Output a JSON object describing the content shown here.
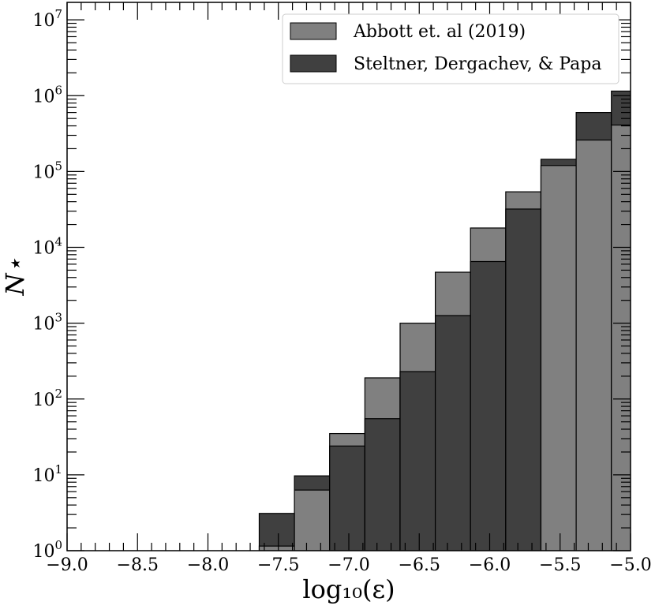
{
  "chart_data": {
    "type": "bar",
    "subtype": "histogram-overlaid",
    "xlabel": "log₁₀(ε)",
    "ylabel": "N⋆",
    "xlim": [
      -9.0,
      -5.0
    ],
    "ylim": [
      1,
      17000000
    ],
    "yscale": "log",
    "grid": false,
    "legend_position": "top-right",
    "x_ticks": [
      -9.0,
      -8.5,
      -8.0,
      -7.5,
      -7.0,
      -6.5,
      -6.0,
      -5.5,
      -5.0
    ],
    "x_tick_labels": [
      "−9.0",
      "−8.5",
      "−8.0",
      "−7.5",
      "−7.0",
      "−6.5",
      "−6.0",
      "−5.5",
      "−5.0"
    ],
    "y_tick_labels": [
      {
        "base": "10",
        "exp": "0"
      },
      {
        "base": "10",
        "exp": "1"
      },
      {
        "base": "10",
        "exp": "2"
      },
      {
        "base": "10",
        "exp": "3"
      },
      {
        "base": "10",
        "exp": "4"
      },
      {
        "base": "10",
        "exp": "5"
      },
      {
        "base": "10",
        "exp": "6"
      },
      {
        "base": "10",
        "exp": "7"
      }
    ],
    "bin_edges": [
      -7.636,
      -7.386,
      -7.136,
      -6.886,
      -6.636,
      -6.386,
      -6.136,
      -5.886,
      -5.636,
      -5.386,
      -5.136,
      -4.886
    ],
    "series": [
      {
        "name": "Abbott et. al (2019)",
        "color": "#808080",
        "values": [
          1.15,
          6.3,
          35,
          190,
          1000,
          4700,
          18000,
          54000,
          120000,
          260000,
          410000
        ]
      },
      {
        "name": "Steltner, Dergachev, & Papa",
        "color": "#404040",
        "values": [
          3.1,
          9.7,
          24,
          55,
          230,
          1260,
          6500,
          32000,
          145000,
          600000,
          1150000
        ]
      }
    ]
  }
}
